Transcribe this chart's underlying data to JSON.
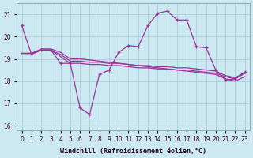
{
  "xlabel": "Windchill (Refroidissement éolien,°C)",
  "x": [
    0,
    1,
    2,
    3,
    4,
    5,
    6,
    7,
    8,
    9,
    10,
    11,
    12,
    13,
    14,
    15,
    16,
    17,
    18,
    19,
    20,
    21,
    22,
    23
  ],
  "line1": [
    20.5,
    19.2,
    19.4,
    19.4,
    18.8,
    18.8,
    16.8,
    16.5,
    18.3,
    18.5,
    19.3,
    19.6,
    19.55,
    20.5,
    21.05,
    21.15,
    20.75,
    20.75,
    19.55,
    19.5,
    18.5,
    18.05,
    18.1,
    18.4
  ],
  "line2": [
    19.25,
    19.25,
    19.4,
    19.4,
    19.1,
    18.8,
    18.8,
    18.75,
    18.75,
    18.7,
    18.7,
    18.65,
    18.6,
    18.6,
    18.55,
    18.55,
    18.5,
    18.5,
    18.45,
    18.4,
    18.35,
    18.2,
    18.1,
    18.35
  ],
  "line3": [
    19.25,
    19.25,
    19.4,
    19.4,
    19.2,
    18.9,
    18.9,
    18.85,
    18.85,
    18.8,
    18.8,
    18.75,
    18.7,
    18.7,
    18.65,
    18.65,
    18.6,
    18.6,
    18.55,
    18.5,
    18.45,
    18.25,
    18.15,
    18.4
  ],
  "line4": [
    19.25,
    19.25,
    19.45,
    19.45,
    19.3,
    19.0,
    19.0,
    18.95,
    18.9,
    18.85,
    18.8,
    18.75,
    18.7,
    18.65,
    18.6,
    18.55,
    18.5,
    18.45,
    18.4,
    18.35,
    18.3,
    18.1,
    18.0,
    18.2
  ],
  "line_color": "#993399",
  "bg_color": "#cce8f0",
  "grid_color": "#aaccdd",
  "ylim_bottom": 15.8,
  "ylim_top": 21.5,
  "yticks": [
    16,
    17,
    18,
    19,
    20,
    21
  ],
  "xticks": [
    0,
    1,
    2,
    3,
    4,
    5,
    6,
    7,
    8,
    9,
    10,
    11,
    12,
    13,
    14,
    15,
    16,
    17,
    18,
    19,
    20,
    21,
    22,
    23
  ],
  "tick_fontsize": 5.5,
  "xlabel_fontsize": 6
}
